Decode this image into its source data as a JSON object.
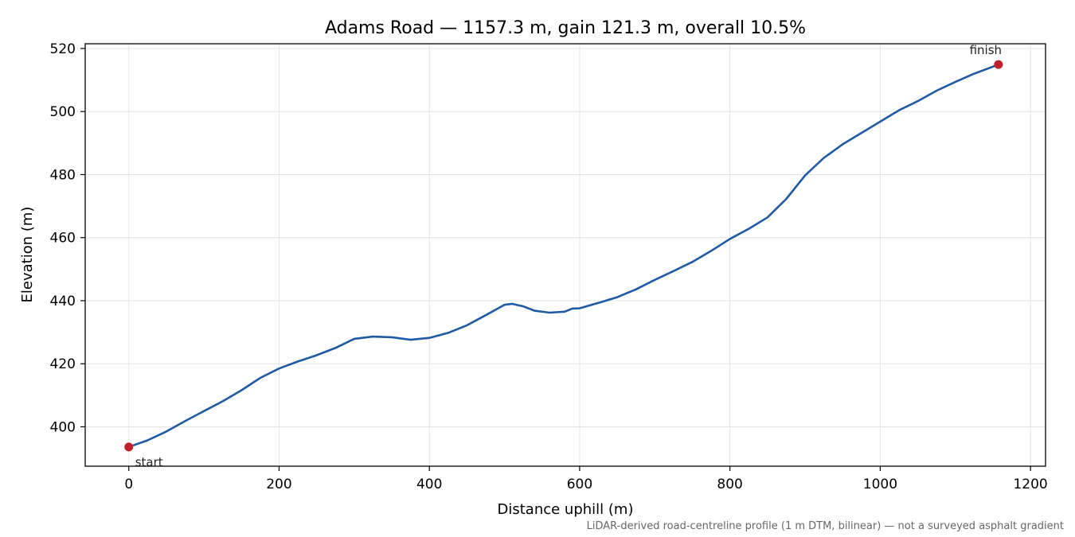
{
  "chart_data": {
    "type": "line",
    "title": "Adams Road — 1157.3 m, gain 121.3 m, overall 10.5%",
    "xlabel": "Distance uphill (m)",
    "ylabel": "Elevation (m)",
    "xlim": [
      -58,
      1220
    ],
    "ylim": [
      387.5,
      521.5
    ],
    "xticks": [
      0,
      200,
      400,
      600,
      800,
      1000,
      1200
    ],
    "yticks": [
      400,
      420,
      440,
      460,
      480,
      500,
      520
    ],
    "grid": true,
    "footnote": "LiDAR-derived road-centreline profile (1 m DTM, bilinear) — not a surveyed asphalt gradient",
    "colors": {
      "line": "#1f5aa6",
      "marker": "#c0202a",
      "grid": "#e3e3e3"
    },
    "series": [
      {
        "x": [
          0,
          25,
          50,
          75,
          100,
          125,
          150,
          175,
          200,
          225,
          250,
          275,
          300,
          325,
          350,
          375,
          400,
          425,
          450,
          475,
          500,
          510,
          525,
          540,
          560,
          580,
          590,
          600,
          625,
          650,
          675,
          700,
          725,
          750,
          775,
          800,
          825,
          850,
          875,
          900,
          925,
          950,
          975,
          1000,
          1025,
          1050,
          1075,
          1100,
          1125,
          1157.3
        ],
        "y": [
          393.6,
          395.7,
          398.5,
          401.8,
          405.0,
          408.1,
          411.6,
          415.5,
          418.5,
          420.7,
          422.7,
          425.0,
          427.9,
          428.6,
          428.4,
          427.6,
          428.2,
          429.8,
          432.2,
          435.4,
          438.7,
          439.0,
          438.2,
          436.8,
          436.2,
          436.5,
          437.5,
          437.6,
          439.3,
          441.1,
          443.6,
          446.6,
          449.4,
          452.3,
          455.8,
          459.6,
          462.8,
          466.4,
          472.3,
          479.7,
          485.3,
          489.6,
          493.2,
          496.8,
          500.4,
          503.3,
          506.6,
          509.4,
          512.0,
          514.9
        ]
      }
    ],
    "annotations": [
      {
        "text": "start",
        "x": 0,
        "y": 393.6
      },
      {
        "text": "finish",
        "x": 1157.3,
        "y": 514.9
      }
    ]
  }
}
